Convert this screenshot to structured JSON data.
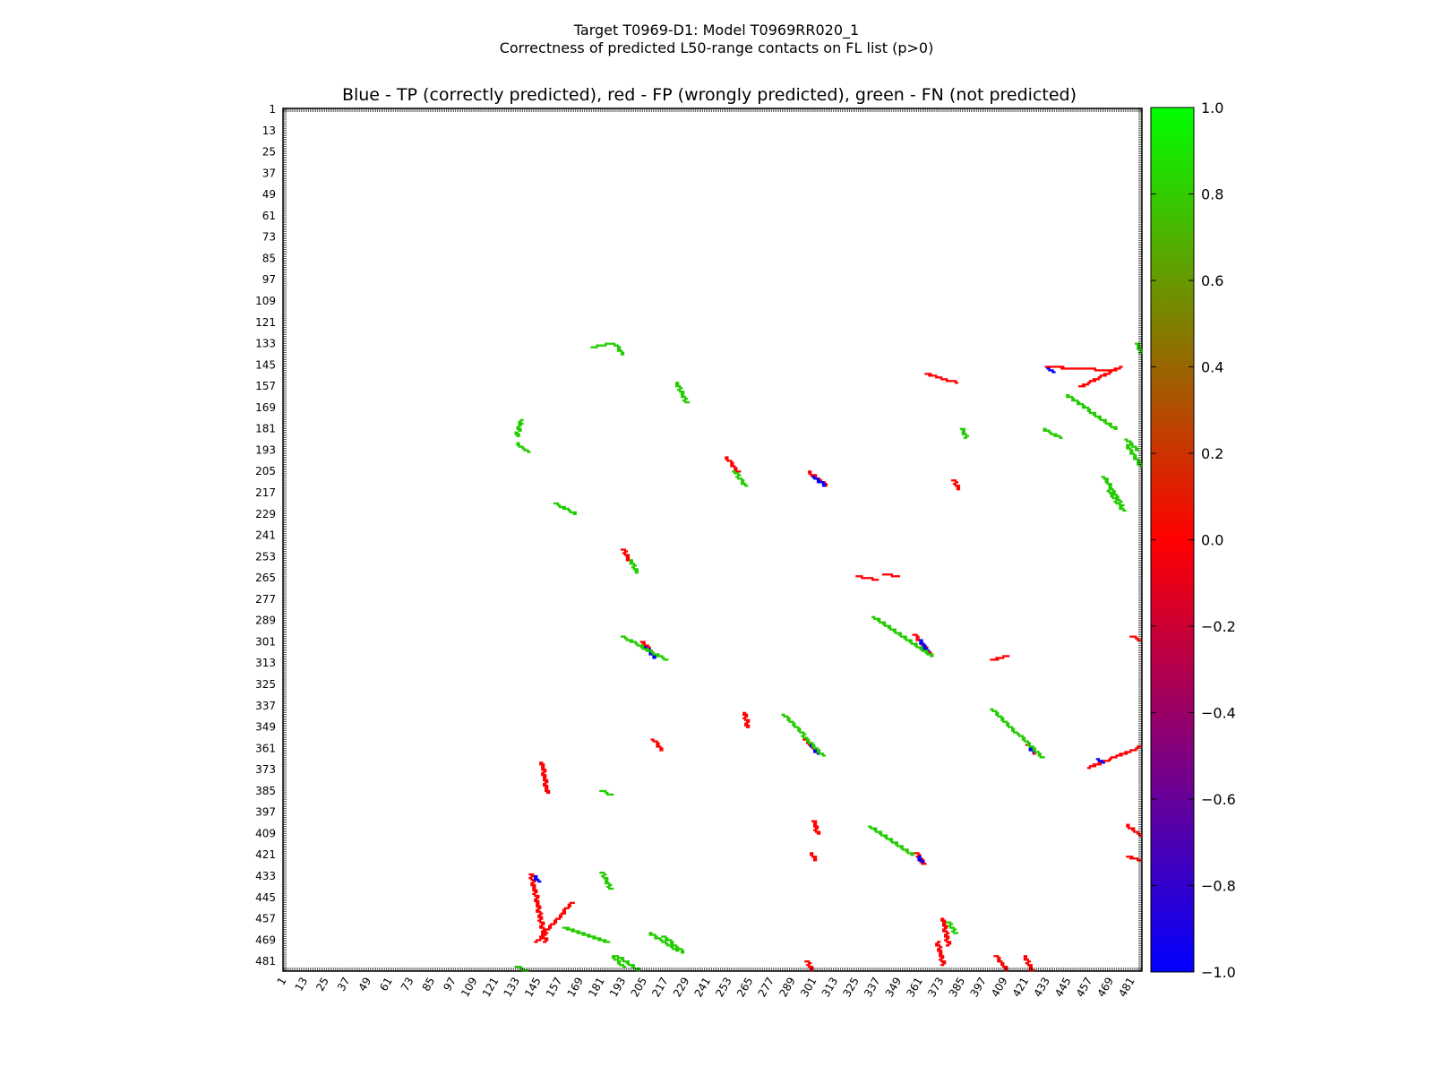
{
  "figure": {
    "title_line1": "Target T0969-D1: Model T0969RR020_1",
    "title_line2": "Correctness of predicted L50-range contacts on FL list (p>0)"
  },
  "chart_data": {
    "type": "heatmap",
    "title": "Blue - TP (correctly predicted), red - FP (wrongly predicted), green - FN (not predicted)",
    "xlabel": "",
    "ylabel": "",
    "xlim": [
      1,
      486
    ],
    "ylim": [
      1,
      486
    ],
    "y_inverted": true,
    "tick_labels": [
      "1",
      "13",
      "25",
      "37",
      "49",
      "61",
      "73",
      "85",
      "97",
      "109",
      "121",
      "133",
      "145",
      "157",
      "169",
      "181",
      "193",
      "205",
      "217",
      "229",
      "241",
      "253",
      "265",
      "277",
      "289",
      "301",
      "313",
      "325",
      "337",
      "349",
      "361",
      "373",
      "385",
      "397",
      "409",
      "421",
      "433",
      "445",
      "457",
      "469",
      "481"
    ],
    "colorbar": {
      "range": [
        -1.0,
        1.0
      ],
      "ticks": [
        "1.0",
        "0.8",
        "0.6",
        "0.4",
        "0.2",
        "0.0",
        "−0.2",
        "−0.4",
        "−0.6",
        "−0.8",
        "−1.0"
      ],
      "colors": {
        "low": "#0000ff",
        "mid": "#ff0000",
        "high": "#00ff00"
      }
    },
    "legend": {
      "tp": {
        "value": -1.0,
        "color": "#0000ff"
      },
      "fp": {
        "value": 0.0,
        "color": "#ff0000"
      },
      "fn": {
        "value": 1.0,
        "color": "#22cc00"
      }
    },
    "contact_segments": [
      {
        "kind": "fp",
        "from": [
          204,
          301
        ],
        "to": [
          211,
          309
        ]
      },
      {
        "kind": "tp",
        "from": [
          206,
          304
        ],
        "to": [
          211,
          310
        ]
      },
      {
        "kind": "fn",
        "from": [
          193,
          298
        ],
        "to": [
          217,
          311
        ]
      },
      {
        "kind": "fp",
        "from": [
          298,
          205
        ],
        "to": [
          308,
          213
        ]
      },
      {
        "kind": "tp",
        "from": [
          301,
          208
        ],
        "to": [
          307,
          213
        ]
      },
      {
        "kind": "fp",
        "from": [
          358,
          297
        ],
        "to": [
          366,
          307
        ]
      },
      {
        "kind": "tp",
        "from": [
          361,
          300
        ],
        "to": [
          365,
          306
        ]
      },
      {
        "kind": "fn",
        "from": [
          335,
          287
        ],
        "to": [
          368,
          309
        ]
      },
      {
        "kind": "fp",
        "from": [
          296,
          356
        ],
        "to": [
          304,
          364
        ]
      },
      {
        "kind": "tp",
        "from": [
          299,
          358
        ],
        "to": [
          303,
          364
        ]
      },
      {
        "kind": "fn",
        "from": [
          284,
          342
        ],
        "to": [
          306,
          365
        ]
      },
      {
        "kind": "fp",
        "from": [
          422,
          359
        ],
        "to": [
          426,
          364
        ]
      },
      {
        "kind": "tp",
        "from": [
          423,
          360
        ],
        "to": [
          425,
          363
        ]
      },
      {
        "kind": "fn",
        "from": [
          402,
          339
        ],
        "to": [
          430,
          366
        ]
      },
      {
        "kind": "fp",
        "from": [
          359,
          420
        ],
        "to": [
          363,
          426
        ]
      },
      {
        "kind": "tp",
        "from": [
          360,
          422
        ],
        "to": [
          362,
          425
        ]
      },
      {
        "kind": "fn",
        "from": [
          333,
          405
        ],
        "to": [
          357,
          421
        ]
      },
      {
        "kind": "fp",
        "from": [
          141,
          432
        ],
        "to": [
          149,
          470
        ]
      },
      {
        "kind": "tp",
        "from": [
          143,
          433
        ],
        "to": [
          145,
          436
        ]
      },
      {
        "kind": "fp",
        "from": [
          144,
          470
        ],
        "to": [
          164,
          448
        ]
      },
      {
        "kind": "fn",
        "from": [
          160,
          462
        ],
        "to": [
          184,
          470
        ]
      },
      {
        "kind": "fp",
        "from": [
          432,
          146
        ],
        "to": [
          470,
          148
        ]
      },
      {
        "kind": "tp",
        "from": [
          434,
          147
        ],
        "to": [
          436,
          149
        ]
      },
      {
        "kind": "fp",
        "from": [
          452,
          157
        ],
        "to": [
          474,
          146
        ]
      },
      {
        "kind": "fn",
        "from": [
          444,
          162
        ],
        "to": [
          472,
          181
        ]
      },
      {
        "kind": "fp",
        "from": [
          147,
          369
        ],
        "to": [
          150,
          386
        ]
      },
      {
        "kind": "fp",
        "from": [
          365,
          150
        ],
        "to": [
          382,
          155
        ]
      },
      {
        "kind": "fp",
        "from": [
          371,
          470
        ],
        "to": [
          374,
          483
        ]
      },
      {
        "kind": "fp",
        "from": [
          374,
          457
        ],
        "to": [
          377,
          472
        ]
      },
      {
        "kind": "fn",
        "from": [
          377,
          459
        ],
        "to": [
          381,
          465
        ]
      },
      {
        "kind": "fp",
        "from": [
          456,
          372
        ],
        "to": [
          486,
          360
        ]
      },
      {
        "kind": "tp",
        "from": [
          462,
          367
        ],
        "to": [
          464,
          369
        ]
      },
      {
        "kind": "fp",
        "from": [
          479,
          422
        ],
        "to": [
          486,
          424
        ]
      },
      {
        "kind": "fp",
        "from": [
          420,
          478
        ],
        "to": [
          424,
          486
        ]
      },
      {
        "kind": "fp",
        "from": [
          481,
          298
        ],
        "to": [
          486,
          300
        ]
      },
      {
        "kind": "fp",
        "from": [
          297,
          481
        ],
        "to": [
          300,
          486
        ]
      },
      {
        "kind": "fp",
        "from": [
          251,
          197
        ],
        "to": [
          258,
          205
        ]
      },
      {
        "kind": "fn",
        "from": [
          256,
          205
        ],
        "to": [
          262,
          213
        ]
      },
      {
        "kind": "fp",
        "from": [
          193,
          249
        ],
        "to": [
          196,
          255
        ]
      },
      {
        "kind": "fn",
        "from": [
          197,
          255
        ],
        "to": [
          201,
          262
        ]
      },
      {
        "kind": "fp",
        "from": [
          262,
          341
        ],
        "to": [
          263,
          349
        ]
      },
      {
        "kind": "fp",
        "from": [
          341,
          263
        ],
        "to": [
          349,
          264
        ]
      },
      {
        "kind": "fp",
        "from": [
          325,
          264
        ],
        "to": [
          336,
          266
        ]
      },
      {
        "kind": "fp",
        "from": [
          402,
          311
        ],
        "to": [
          410,
          309
        ]
      },
      {
        "kind": "fp",
        "from": [
          301,
          402
        ],
        "to": [
          303,
          409
        ]
      },
      {
        "kind": "fp",
        "from": [
          299,
          420
        ],
        "to": [
          302,
          424
        ]
      },
      {
        "kind": "fp",
        "from": [
          210,
          356
        ],
        "to": [
          215,
          362
        ]
      },
      {
        "kind": "fp",
        "from": [
          380,
          210
        ],
        "to": [
          383,
          215
        ]
      },
      {
        "kind": "fn",
        "from": [
          133,
          189
        ],
        "to": [
          139,
          194
        ]
      },
      {
        "kind": "fn",
        "from": [
          188,
          133
        ],
        "to": [
          193,
          139
        ]
      },
      {
        "kind": "fn",
        "from": [
          155,
          223
        ],
        "to": [
          166,
          229
        ]
      },
      {
        "kind": "fn",
        "from": [
          223,
          155
        ],
        "to": [
          229,
          166
        ]
      },
      {
        "kind": "fn",
        "from": [
          468,
          216
        ],
        "to": [
          476,
          227
        ]
      },
      {
        "kind": "fn",
        "from": [
          216,
          467
        ],
        "to": [
          227,
          476
        ]
      },
      {
        "kind": "fn",
        "from": [
          478,
          190
        ],
        "to": [
          486,
          202
        ]
      },
      {
        "kind": "fn",
        "from": [
          190,
          478
        ],
        "to": [
          202,
          486
        ]
      },
      {
        "kind": "fn",
        "from": [
          176,
          135
        ],
        "to": [
          185,
          133
        ]
      },
      {
        "kind": "fn",
        "from": [
          135,
          176
        ],
        "to": [
          133,
          185
        ]
      },
      {
        "kind": "fn",
        "from": [
          181,
          385
        ],
        "to": [
          186,
          387
        ]
      },
      {
        "kind": "fn",
        "from": [
          385,
          181
        ],
        "to": [
          387,
          186
        ]
      },
      {
        "kind": "fn",
        "from": [
          208,
          465
        ],
        "to": [
          224,
          475
        ]
      },
      {
        "kind": "fn",
        "from": [
          465,
          208
        ],
        "to": [
          475,
          224
        ]
      },
      {
        "kind": "fn",
        "from": [
          181,
          431
        ],
        "to": [
          186,
          440
        ]
      },
      {
        "kind": "fn",
        "from": [
          431,
          181
        ],
        "to": [
          440,
          186
        ]
      },
      {
        "kind": "fn",
        "from": [
          133,
          484
        ],
        "to": [
          138,
          486
        ]
      },
      {
        "kind": "fn",
        "from": [
          484,
          133
        ],
        "to": [
          486,
          138
        ]
      },
      {
        "kind": "fn",
        "from": [
          187,
          478
        ],
        "to": [
          193,
          484
        ]
      },
      {
        "kind": "fn",
        "from": [
          478,
          187
        ],
        "to": [
          484,
          193
        ]
      },
      {
        "kind": "fp",
        "from": [
          404,
          478
        ],
        "to": [
          410,
          486
        ]
      },
      {
        "kind": "fp",
        "from": [
          478,
          404
        ],
        "to": [
          486,
          410
        ]
      }
    ]
  }
}
